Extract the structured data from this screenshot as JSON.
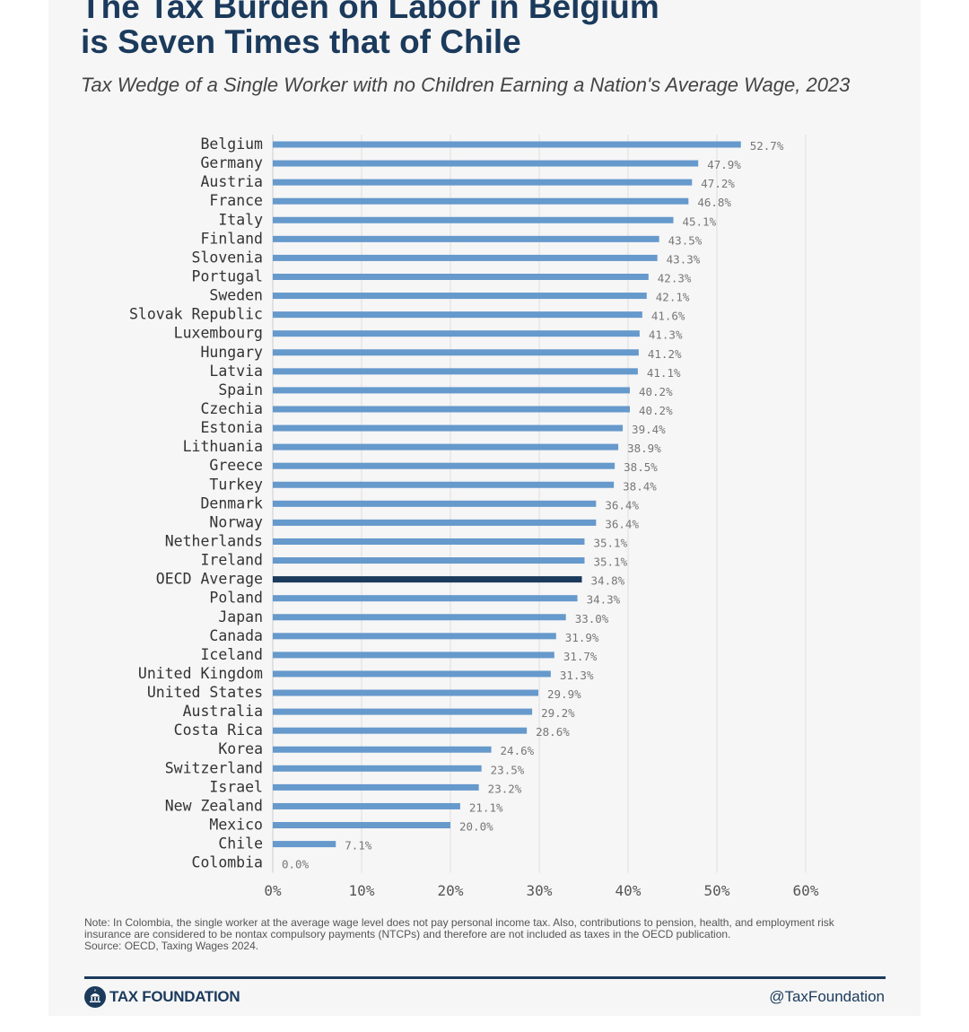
{
  "title": "The Tax Burden on Labor in Belgium\nis Seven Times that of Chile",
  "subtitle": "Tax Wedge of a Single Worker with no Children Earning a Nation's Average Wage, 2023",
  "chart_data": {
    "type": "bar",
    "orientation": "horizontal",
    "categories": [
      "Belgium",
      "Germany",
      "Austria",
      "France",
      "Italy",
      "Finland",
      "Slovenia",
      "Portugal",
      "Sweden",
      "Slovak Republic",
      "Luxembourg",
      "Hungary",
      "Latvia",
      "Spain",
      "Czechia",
      "Estonia",
      "Lithuania",
      "Greece",
      "Turkey",
      "Denmark",
      "Norway",
      "Netherlands",
      "Ireland",
      "OECD Average",
      "Poland",
      "Japan",
      "Canada",
      "Iceland",
      "United Kingdom",
      "United States",
      "Australia",
      "Costa Rica",
      "Korea",
      "Switzerland",
      "Israel",
      "New Zealand",
      "Mexico",
      "Chile",
      "Colombia"
    ],
    "values": [
      52.7,
      47.9,
      47.2,
      46.8,
      45.1,
      43.5,
      43.3,
      42.3,
      42.1,
      41.6,
      41.3,
      41.2,
      41.1,
      40.2,
      40.2,
      39.4,
      38.9,
      38.5,
      38.4,
      36.4,
      36.4,
      35.1,
      35.1,
      34.8,
      34.3,
      33.0,
      31.9,
      31.7,
      31.3,
      29.9,
      29.2,
      28.6,
      24.6,
      23.5,
      23.2,
      21.1,
      20.0,
      7.1,
      0.0
    ],
    "value_labels": [
      "52.7%",
      "47.9%",
      "47.2%",
      "46.8%",
      "45.1%",
      "43.5%",
      "43.3%",
      "42.3%",
      "42.1%",
      "41.6%",
      "41.3%",
      "41.2%",
      "41.1%",
      "40.2%",
      "40.2%",
      "39.4%",
      "38.9%",
      "38.5%",
      "38.4%",
      "36.4%",
      "36.4%",
      "35.1%",
      "35.1%",
      "34.8%",
      "34.3%",
      "33.0%",
      "31.9%",
      "31.7%",
      "31.3%",
      "29.9%",
      "29.2%",
      "28.6%",
      "24.6%",
      "23.5%",
      "23.2%",
      "21.1%",
      "20.0%",
      "7.1%",
      "0.0%"
    ],
    "highlight_category": "OECD Average",
    "xlim": [
      0,
      60
    ],
    "xticks": [
      0,
      10,
      20,
      30,
      40,
      50,
      60
    ],
    "xtick_labels": [
      "0%",
      "10%",
      "20%",
      "30%",
      "40%",
      "50%",
      "60%"
    ],
    "grid": true,
    "colors": {
      "bar": "#6699cc",
      "highlight": "#1b3a5c",
      "grid": "#dddddd",
      "label": "#333333",
      "value": "#777777"
    }
  },
  "note": "Note: In Colombia, the single worker at the average wage level does not pay personal income tax. Also, contributions to pension, health, and employment risk insurance are considered to be nontax compulsory payments (NTCPs) and therefore are not included as taxes in the OECD publication.",
  "source": "Source: OECD, Taxing Wages 2024.",
  "footer": {
    "brand": "TAX FOUNDATION",
    "handle": "@TaxFoundation"
  }
}
